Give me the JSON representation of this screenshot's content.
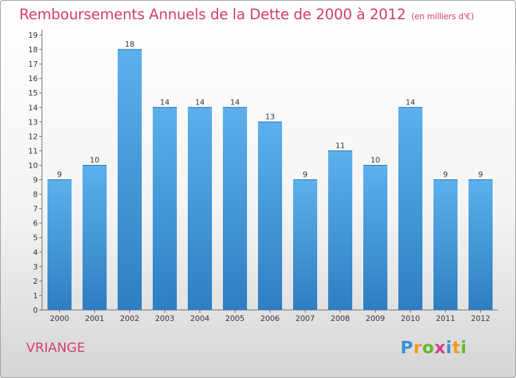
{
  "title": {
    "main": "Remboursements Annuels de la Dette de 2000 à 2012",
    "unit": "(en milliers d'€)"
  },
  "commune": "VRIANGE",
  "logo": {
    "letters": [
      "P",
      "r",
      "o",
      "x",
      "i",
      "t",
      "i"
    ],
    "colors": [
      "#3c8fd8",
      "#f39a1e",
      "#68b730",
      "#d83a8c"
    ]
  },
  "chart_data": {
    "type": "bar",
    "title": "Remboursements Annuels de la Dette de 2000 à 2012",
    "xlabel": "",
    "ylabel": "",
    "categories": [
      "2000",
      "2001",
      "2002",
      "2003",
      "2004",
      "2005",
      "2006",
      "2007",
      "2008",
      "2009",
      "2010",
      "2011",
      "2012"
    ],
    "values": [
      9,
      10,
      18,
      14,
      14,
      14,
      13,
      9,
      11,
      10,
      14,
      9,
      9
    ],
    "ylim": [
      0,
      19
    ],
    "yticks": [
      0,
      1,
      2,
      3,
      4,
      5,
      6,
      7,
      8,
      9,
      10,
      11,
      12,
      13,
      14,
      15,
      16,
      17,
      18,
      19
    ],
    "grid": false,
    "bar_color": "#4a9fe0"
  }
}
